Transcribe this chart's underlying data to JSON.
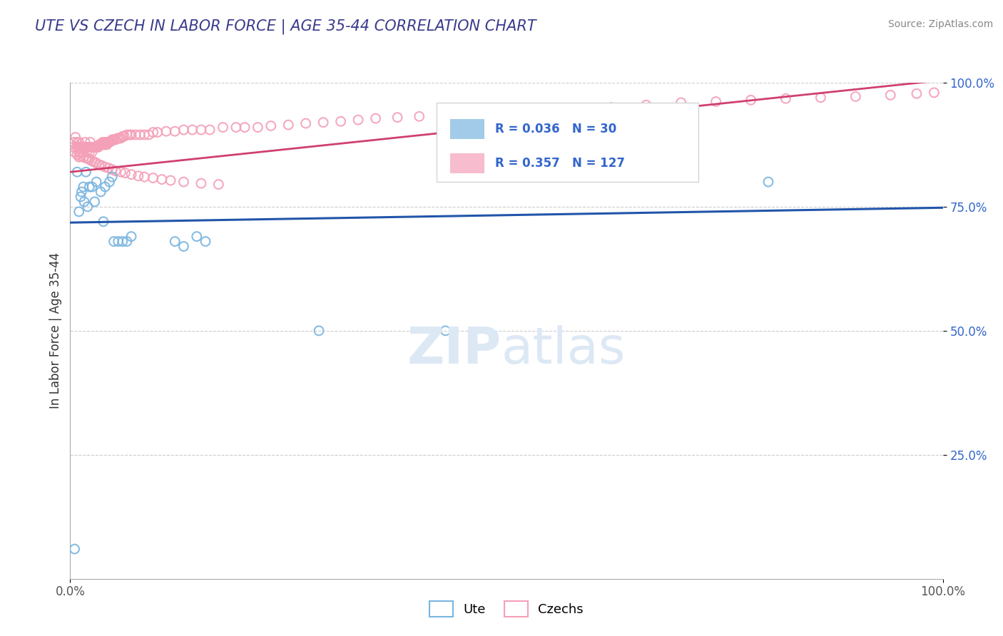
{
  "title": "UTE VS CZECH IN LABOR FORCE | AGE 35-44 CORRELATION CHART",
  "source_text": "Source: ZipAtlas.com",
  "ylabel": "In Labor Force | Age 35-44",
  "xmin": 0.0,
  "xmax": 1.0,
  "ymin": 0.0,
  "ymax": 1.0,
  "ytick_labels": [
    "25.0%",
    "50.0%",
    "75.0%",
    "100.0%"
  ],
  "ytick_positions": [
    0.25,
    0.5,
    0.75,
    1.0
  ],
  "blue_color": "#7ab5e0",
  "pink_color": "#f4a0b8",
  "blue_line_color": "#2255aa",
  "pink_line_color": "#d04070",
  "title_color": "#3a3a8c",
  "legend_r_color": "#3366cc",
  "background_color": "#ffffff",
  "grid_color": "#cccccc",
  "watermark_color": "#dde8f5",
  "blue_R": 0.036,
  "blue_N": 30,
  "pink_R": 0.357,
  "pink_N": 127,
  "blue_line_y0": 0.718,
  "blue_line_y1": 0.748,
  "pink_line_y0": 0.82,
  "pink_line_y1": 1.005,
  "blue_scatter_x": [
    0.005,
    0.008,
    0.01,
    0.012,
    0.013,
    0.015,
    0.016,
    0.018,
    0.02,
    0.022,
    0.025,
    0.028,
    0.03,
    0.035,
    0.038,
    0.04,
    0.045,
    0.048,
    0.05,
    0.055,
    0.06,
    0.065,
    0.07,
    0.12,
    0.13,
    0.145,
    0.155,
    0.285,
    0.43,
    0.8
  ],
  "blue_scatter_y": [
    0.06,
    0.82,
    0.74,
    0.77,
    0.78,
    0.79,
    0.76,
    0.82,
    0.75,
    0.79,
    0.79,
    0.76,
    0.8,
    0.78,
    0.72,
    0.79,
    0.8,
    0.81,
    0.68,
    0.68,
    0.68,
    0.68,
    0.69,
    0.68,
    0.67,
    0.69,
    0.68,
    0.5,
    0.5,
    0.8
  ],
  "pink_scatter_x": [
    0.003,
    0.004,
    0.005,
    0.006,
    0.007,
    0.008,
    0.009,
    0.01,
    0.01,
    0.01,
    0.011,
    0.012,
    0.013,
    0.014,
    0.015,
    0.016,
    0.017,
    0.018,
    0.019,
    0.02,
    0.021,
    0.022,
    0.023,
    0.024,
    0.025,
    0.026,
    0.027,
    0.028,
    0.029,
    0.03,
    0.031,
    0.032,
    0.033,
    0.034,
    0.035,
    0.036,
    0.037,
    0.038,
    0.039,
    0.04,
    0.041,
    0.042,
    0.043,
    0.044,
    0.045,
    0.046,
    0.047,
    0.048,
    0.049,
    0.05,
    0.052,
    0.054,
    0.056,
    0.058,
    0.06,
    0.062,
    0.065,
    0.068,
    0.07,
    0.075,
    0.08,
    0.085,
    0.09,
    0.095,
    0.1,
    0.11,
    0.12,
    0.13,
    0.14,
    0.15,
    0.16,
    0.175,
    0.19,
    0.2,
    0.215,
    0.23,
    0.25,
    0.27,
    0.29,
    0.31,
    0.33,
    0.35,
    0.375,
    0.4,
    0.43,
    0.46,
    0.5,
    0.54,
    0.58,
    0.62,
    0.66,
    0.7,
    0.74,
    0.78,
    0.82,
    0.86,
    0.9,
    0.94,
    0.97,
    0.99,
    0.008,
    0.01,
    0.012,
    0.015,
    0.018,
    0.02,
    0.022,
    0.025,
    0.028,
    0.03,
    0.033,
    0.036,
    0.04,
    0.044,
    0.048,
    0.052,
    0.058,
    0.063,
    0.07,
    0.078,
    0.085,
    0.095,
    0.105,
    0.115,
    0.13,
    0.15,
    0.17
  ],
  "pink_scatter_y": [
    0.87,
    0.88,
    0.86,
    0.89,
    0.87,
    0.88,
    0.87,
    0.86,
    0.87,
    0.88,
    0.86,
    0.87,
    0.87,
    0.87,
    0.86,
    0.87,
    0.88,
    0.87,
    0.86,
    0.87,
    0.87,
    0.86,
    0.88,
    0.87,
    0.86,
    0.87,
    0.87,
    0.87,
    0.87,
    0.87,
    0.87,
    0.87,
    0.875,
    0.875,
    0.875,
    0.875,
    0.88,
    0.875,
    0.88,
    0.875,
    0.88,
    0.875,
    0.88,
    0.88,
    0.88,
    0.882,
    0.882,
    0.885,
    0.885,
    0.885,
    0.885,
    0.888,
    0.888,
    0.888,
    0.892,
    0.892,
    0.895,
    0.895,
    0.895,
    0.895,
    0.895,
    0.895,
    0.895,
    0.9,
    0.9,
    0.902,
    0.902,
    0.905,
    0.905,
    0.905,
    0.905,
    0.91,
    0.91,
    0.91,
    0.91,
    0.913,
    0.915,
    0.918,
    0.92,
    0.922,
    0.925,
    0.928,
    0.93,
    0.932,
    0.935,
    0.938,
    0.942,
    0.945,
    0.948,
    0.95,
    0.955,
    0.96,
    0.962,
    0.965,
    0.968,
    0.97,
    0.972,
    0.975,
    0.978,
    0.98,
    0.855,
    0.85,
    0.852,
    0.85,
    0.848,
    0.848,
    0.845,
    0.842,
    0.84,
    0.838,
    0.835,
    0.833,
    0.83,
    0.828,
    0.825,
    0.822,
    0.82,
    0.818,
    0.815,
    0.812,
    0.81,
    0.808,
    0.805,
    0.803,
    0.8,
    0.797,
    0.795
  ],
  "marker_size": 85,
  "marker_alpha": 0.45,
  "fig_width": 14.06,
  "fig_height": 8.92
}
